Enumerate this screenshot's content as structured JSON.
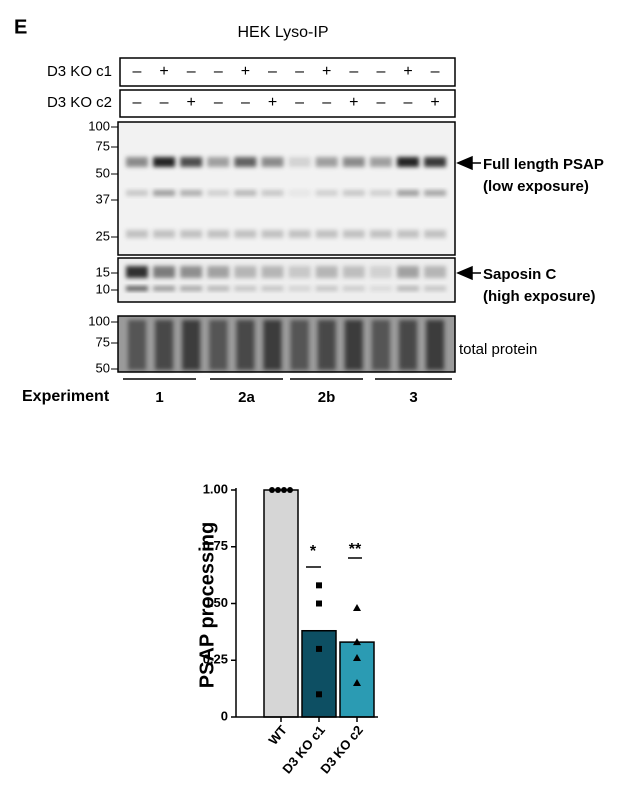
{
  "panel_label": "E",
  "blot_title": "HEK Lyso-IP",
  "conditions": [
    {
      "label": "D3 KO c1",
      "lanes": [
        "–",
        "+",
        "–",
        "–",
        "+",
        "–",
        "–",
        "+",
        "–",
        "–",
        "+",
        "–"
      ]
    },
    {
      "label": "D3 KO c2",
      "lanes": [
        "–",
        "–",
        "+",
        "–",
        "–",
        "+",
        "–",
        "–",
        "+",
        "–",
        "–",
        "+"
      ]
    }
  ],
  "blots": [
    {
      "markers": [
        "100",
        "75",
        "50",
        "37",
        "25"
      ],
      "label": "Full length PSAP",
      "sublabel": "(low exposure)"
    },
    {
      "markers": [
        "15",
        "10"
      ],
      "label": "Saposin C",
      "sublabel": "(high exposure)"
    },
    {
      "markers": [
        "100",
        "75",
        "50"
      ],
      "label": "total protein"
    }
  ],
  "experiment": {
    "label": "Experiment",
    "groups": [
      "1",
      "2a",
      "2b",
      "3"
    ]
  },
  "chart_data": {
    "type": "bar",
    "y_label": "PSAP processing",
    "categories": [
      "WT",
      "D3 KO c1",
      "D3 KO c2"
    ],
    "values": [
      1.0,
      0.38,
      0.33
    ],
    "colors": [
      "#d6d6d6",
      "#0d4f63",
      "#2b9bb3"
    ],
    "points": [
      [
        1.0,
        1.0,
        1.0,
        1.0
      ],
      [
        0.58,
        0.5,
        0.3,
        0.1
      ],
      [
        0.48,
        0.33,
        0.26,
        0.15
      ]
    ],
    "annotations": [
      "",
      "*",
      "**"
    ],
    "ylim": [
      0,
      1.0
    ],
    "yticks": [
      0,
      0.25,
      {
        "value": 0.5,
        "label": "0.50"
      },
      0.75,
      {
        "value": 1.0,
        "label": "1.00"
      }
    ]
  }
}
